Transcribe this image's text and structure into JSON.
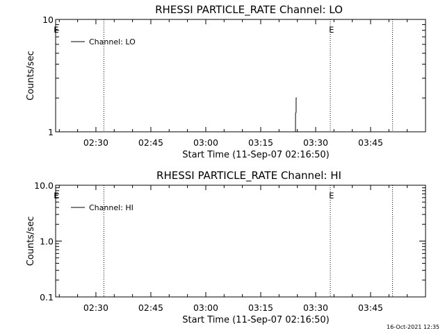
{
  "timestamp": "16-Oct-2021 12:35",
  "chart_data": [
    {
      "type": "line",
      "title": "RHESSI PARTICLE_RATE Channel: LO",
      "xlabel": "Start Time (11-Sep-07 02:16:50)",
      "ylabel": "Counts/sec",
      "yscale": "log",
      "ylim": [
        1,
        10
      ],
      "yticks": [
        {
          "v": 1,
          "label": "1"
        },
        {
          "v": 10,
          "label": "10"
        }
      ],
      "xlim": [
        "02:19:00",
        "04:00:00"
      ],
      "xticks": [
        "02:30",
        "02:45",
        "03:00",
        "03:15",
        "03:30",
        "03:45"
      ],
      "legend": "top-left",
      "series": [
        {
          "name": "Channel: LO",
          "x": [
            "03:24:30",
            "03:24:30",
            "03:24:40",
            "03:24:40",
            "03:24:50"
          ],
          "y": [
            1,
            1.45,
            1.5,
            2.0,
            2.0
          ]
        }
      ],
      "markers": [
        {
          "time": "02:32:10",
          "label": "E",
          "labelTime": "02:19:10"
        },
        {
          "time": "03:34:00",
          "label": "E",
          "labelTime": "03:34:20"
        },
        {
          "time": "03:51:00",
          "label": ""
        }
      ]
    },
    {
      "type": "line",
      "title": "RHESSI PARTICLE_RATE Channel: HI",
      "xlabel": "Start Time (11-Sep-07 02:16:50)",
      "ylabel": "Counts/sec",
      "yscale": "log",
      "ylim": [
        0.1,
        10
      ],
      "yticks": [
        {
          "v": 0.1,
          "label": "0.1"
        },
        {
          "v": 1,
          "label": "1.0"
        },
        {
          "v": 10,
          "label": "10.0"
        }
      ],
      "xlim": [
        "02:19:00",
        "04:00:00"
      ],
      "xticks": [
        "02:30",
        "02:45",
        "03:00",
        "03:15",
        "03:30",
        "03:45"
      ],
      "legend": "top-left",
      "series": [
        {
          "name": "Channel: HI",
          "x": [],
          "y": []
        }
      ],
      "markers": [
        {
          "time": "02:32:10",
          "label": "E",
          "labelTime": "02:19:10"
        },
        {
          "time": "03:34:00",
          "label": "E",
          "labelTime": "03:34:20"
        },
        {
          "time": "03:51:00",
          "label": ""
        }
      ]
    }
  ]
}
